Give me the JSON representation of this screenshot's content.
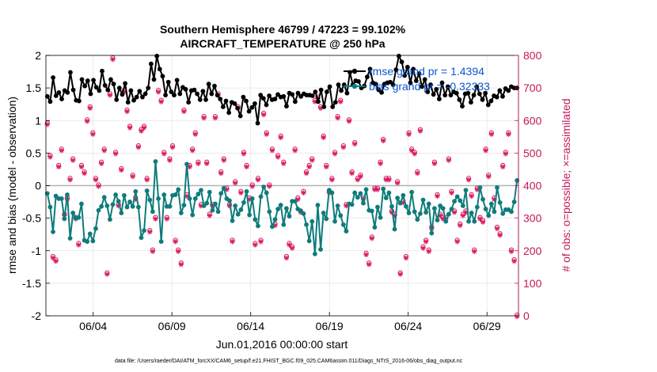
{
  "chart_data": {
    "type": "line",
    "title_line1": "Southern Hemisphere 46799 / 47223 = 99.102%",
    "title_line2": "AIRCRAFT_TEMPERATURE @ 250 hPa",
    "ylabel_left": "rmse and bias (model - observation)",
    "ylabel_right": "# of obs: o=possible; ×=assimilated",
    "xlabel": "Jun.01,2016 00:00:00 start",
    "footer": "data file: /Users/raeder/DAI/ATM_forcXX/CAM6_setup/f.e21.FHIST_BGC.f09_025.CAM6assim.011/Diags_NTrS_2016-06/obs_diag_output.nc",
    "ylim_left": [
      -2,
      2
    ],
    "ylim_right": [
      0,
      800
    ],
    "xlim_days": [
      0.5,
      30.5
    ],
    "y_ticks_left": [
      "-2",
      "-1.5",
      "-1",
      "-0.5",
      "0",
      "0.5",
      "1",
      "1.5",
      "2"
    ],
    "y_ticks_right": [
      "0",
      "100",
      "200",
      "300",
      "400",
      "500",
      "600",
      "700",
      "800"
    ],
    "x_ticks": [
      {
        "day": 3.5,
        "label": "06/04"
      },
      {
        "day": 8.5,
        "label": "06/09"
      },
      {
        "day": 13.5,
        "label": "06/14"
      },
      {
        "day": 18.5,
        "label": "06/19"
      },
      {
        "day": 23.5,
        "label": "06/24"
      },
      {
        "day": 28.5,
        "label": "06/29"
      }
    ],
    "grid": true,
    "legend_placement": "top-right",
    "colors": {
      "rmse": "#000000",
      "bias": "#0e7c7b",
      "obs": "#d81b60",
      "zero_line": "#b3b3b3",
      "legend_text": "#0b57d0"
    },
    "series": [
      {
        "name": "rmse grand pr = 1.4394",
        "key": "rmse",
        "values": [
          1.37,
          1.29,
          1.66,
          1.38,
          1.43,
          1.33,
          1.46,
          1.43,
          1.74,
          1.47,
          1.31,
          1.3,
          1.63,
          1.53,
          1.61,
          1.41,
          1.62,
          1.51,
          1.46,
          1.76,
          1.54,
          1.47,
          1.63,
          1.56,
          1.32,
          1.5,
          1.4,
          1.57,
          1.28,
          1.46,
          1.31,
          1.36,
          1.45,
          1.36,
          1.41,
          1.5,
          1.87,
          1.63,
          1.99,
          1.79,
          1.68,
          1.39,
          1.59,
          1.44,
          1.39,
          1.62,
          1.41,
          1.51,
          1.48,
          1.28,
          1.46,
          1.47,
          1.41,
          1.32,
          1.45,
          1.32,
          1.56,
          1.41,
          1.53,
          1.39,
          1.33,
          1.21,
          1.3,
          1.12,
          1.28,
          1.26,
          1.19,
          1.07,
          1.36,
          1.3,
          1.14,
          1.2,
          1.26,
          0.96,
          1.39,
          1.34,
          1.24,
          1.38,
          1.32,
          1.33,
          1.4,
          1.36,
          1.37,
          1.22,
          1.42,
          1.4,
          1.29,
          1.42,
          1.37,
          1.41,
          1.39,
          1.39,
          1.38,
          1.44,
          1.29,
          1.47,
          1.21,
          1.44,
          1.52,
          1.21,
          1.28,
          1.55,
          1.46,
          1.55,
          1.42,
          1.74,
          1.55,
          1.61,
          1.6,
          1.5,
          1.53,
          1.67,
          1.79,
          1.58,
          1.56,
          1.47,
          1.43,
          1.56,
          1.58,
          1.59,
          1.55,
          1.78,
          1.99,
          1.9,
          1.69,
          1.82,
          1.58,
          1.79,
          1.61,
          1.72,
          1.52,
          1.63,
          1.44,
          1.55,
          1.4,
          1.48,
          1.33,
          1.58,
          1.39,
          1.52,
          1.39,
          1.44,
          1.42,
          1.32,
          1.22,
          1.41,
          1.42,
          1.28,
          1.39,
          1.52,
          1.41,
          1.32,
          1.42,
          1.24,
          1.3,
          1.38,
          1.36,
          1.46,
          1.37,
          1.49,
          1.46,
          1.52,
          1.5,
          1.5
        ]
      },
      {
        "name": "bias grand pr = -0.32333",
        "key": "bias",
        "values": [
          -0.12,
          -0.33,
          -0.71,
          -0.16,
          -0.2,
          -0.2,
          -0.51,
          -0.14,
          -0.81,
          -0.42,
          -0.5,
          -0.49,
          -0.28,
          -0.84,
          -0.86,
          -0.74,
          -0.85,
          -0.66,
          -0.38,
          -0.32,
          -0.18,
          -0.31,
          -0.52,
          -0.29,
          -0.14,
          -0.24,
          -0.42,
          -0.15,
          -0.33,
          -0.25,
          -0.32,
          -0.09,
          -0.33,
          -0.8,
          -0.69,
          -0.08,
          -0.22,
          -0.4,
          0.37,
          -0.2,
          -0.86,
          -0.14,
          -0.32,
          -0.32,
          -0.15,
          -0.14,
          -0.06,
          -0.42,
          -0.3,
          0.33,
          -0.2,
          -0.45,
          -0.2,
          -0.13,
          -0.07,
          -0.31,
          -0.27,
          -0.1,
          -0.38,
          -0.28,
          -0.4,
          -0.12,
          -0.04,
          -0.2,
          -0.23,
          -0.54,
          -0.31,
          -0.44,
          -0.37,
          -0.26,
          -0.09,
          -0.45,
          -0.2,
          -0.52,
          -0.62,
          -0.17,
          -0.02,
          -0.11,
          -0.4,
          -0.63,
          -0.52,
          -0.36,
          -0.3,
          -0.6,
          -0.35,
          -0.47,
          -0.24,
          -0.24,
          -0.36,
          -0.39,
          -0.43,
          -0.6,
          -0.85,
          -0.55,
          -1.05,
          -0.3,
          -0.98,
          -0.42,
          -0.51,
          -0.07,
          -0.11,
          -0.55,
          -0.31,
          -0.46,
          -0.6,
          -0.7,
          -0.28,
          -0.29,
          -0.11,
          -0.18,
          -0.12,
          -0.27,
          -0.06,
          -0.38,
          -0.39,
          -0.64,
          -0.33,
          -0.49,
          -0.05,
          -0.19,
          -0.11,
          -0.32,
          -0.67,
          -0.19,
          -0.27,
          -0.15,
          -0.32,
          -0.42,
          -0.1,
          -0.4,
          -0.52,
          -0.43,
          -0.22,
          -0.41,
          -0.28,
          -0.73,
          -0.35,
          -0.53,
          -0.31,
          -0.35,
          -0.55,
          -0.44,
          -0.36,
          -0.24,
          -0.17,
          -0.23,
          -0.31,
          -0.07,
          -0.55,
          -0.42,
          -0.55,
          -0.33,
          -0.03,
          -0.21,
          -0.36,
          -0.46,
          -0.28,
          -0.4,
          -0.03,
          -0.26,
          -0.43,
          -0.37,
          -0.37,
          -0.4,
          -0.25,
          0.08
        ]
      },
      {
        "name": "obs",
        "key": "obs",
        "values": [
          590,
          490,
          180,
          170,
          460,
          510,
          310,
          360,
          420,
          480,
          300,
          220,
          460,
          440,
          600,
          640,
          560,
          420,
          400,
          470,
          510,
          130,
          680,
          790,
          500,
          340,
          450,
          690,
          630,
          580,
          430,
          360,
          520,
          570,
          580,
          420,
          260,
          200,
          300,
          690,
          660,
          500,
          300,
          480,
          520,
          230,
          200,
          160,
          630,
          370,
          460,
          510,
          560,
          470,
          340,
          610,
          470,
          310,
          340,
          610,
          680,
          440,
          480,
          390,
          340,
          230,
          410,
          640,
          380,
          500,
          460,
          360,
          400,
          220,
          420,
          230,
          620,
          560,
          400,
          510,
          280,
          490,
          550,
          470,
          180,
          220,
          210,
          510,
          360,
          320,
          380,
          440,
          460,
          480,
          660,
          670,
          640,
          550,
          460,
          380,
          420,
          500,
          610,
          660,
          520,
          340,
          600,
          440,
          530,
          420,
          430,
          360,
          190,
          160,
          240,
          390,
          390,
          470,
          540,
          420,
          420,
          320,
          310,
          410,
          130,
          350,
          180,
          560,
          510,
          500,
          440,
          570,
          210,
          230,
          200,
          270,
          470,
          370,
          310,
          300,
          300,
          480,
          380,
          320,
          230,
          280,
          310,
          320,
          420,
          370,
          200,
          390,
          300,
          290,
          510,
          430,
          560,
          360,
          270,
          250,
          460,
          500,
          560,
          200,
          170,
          0
        ]
      }
    ],
    "legend_entries": [
      "rmse grand pr = 1.4394",
      "bias grand pr = -0.32333"
    ]
  }
}
